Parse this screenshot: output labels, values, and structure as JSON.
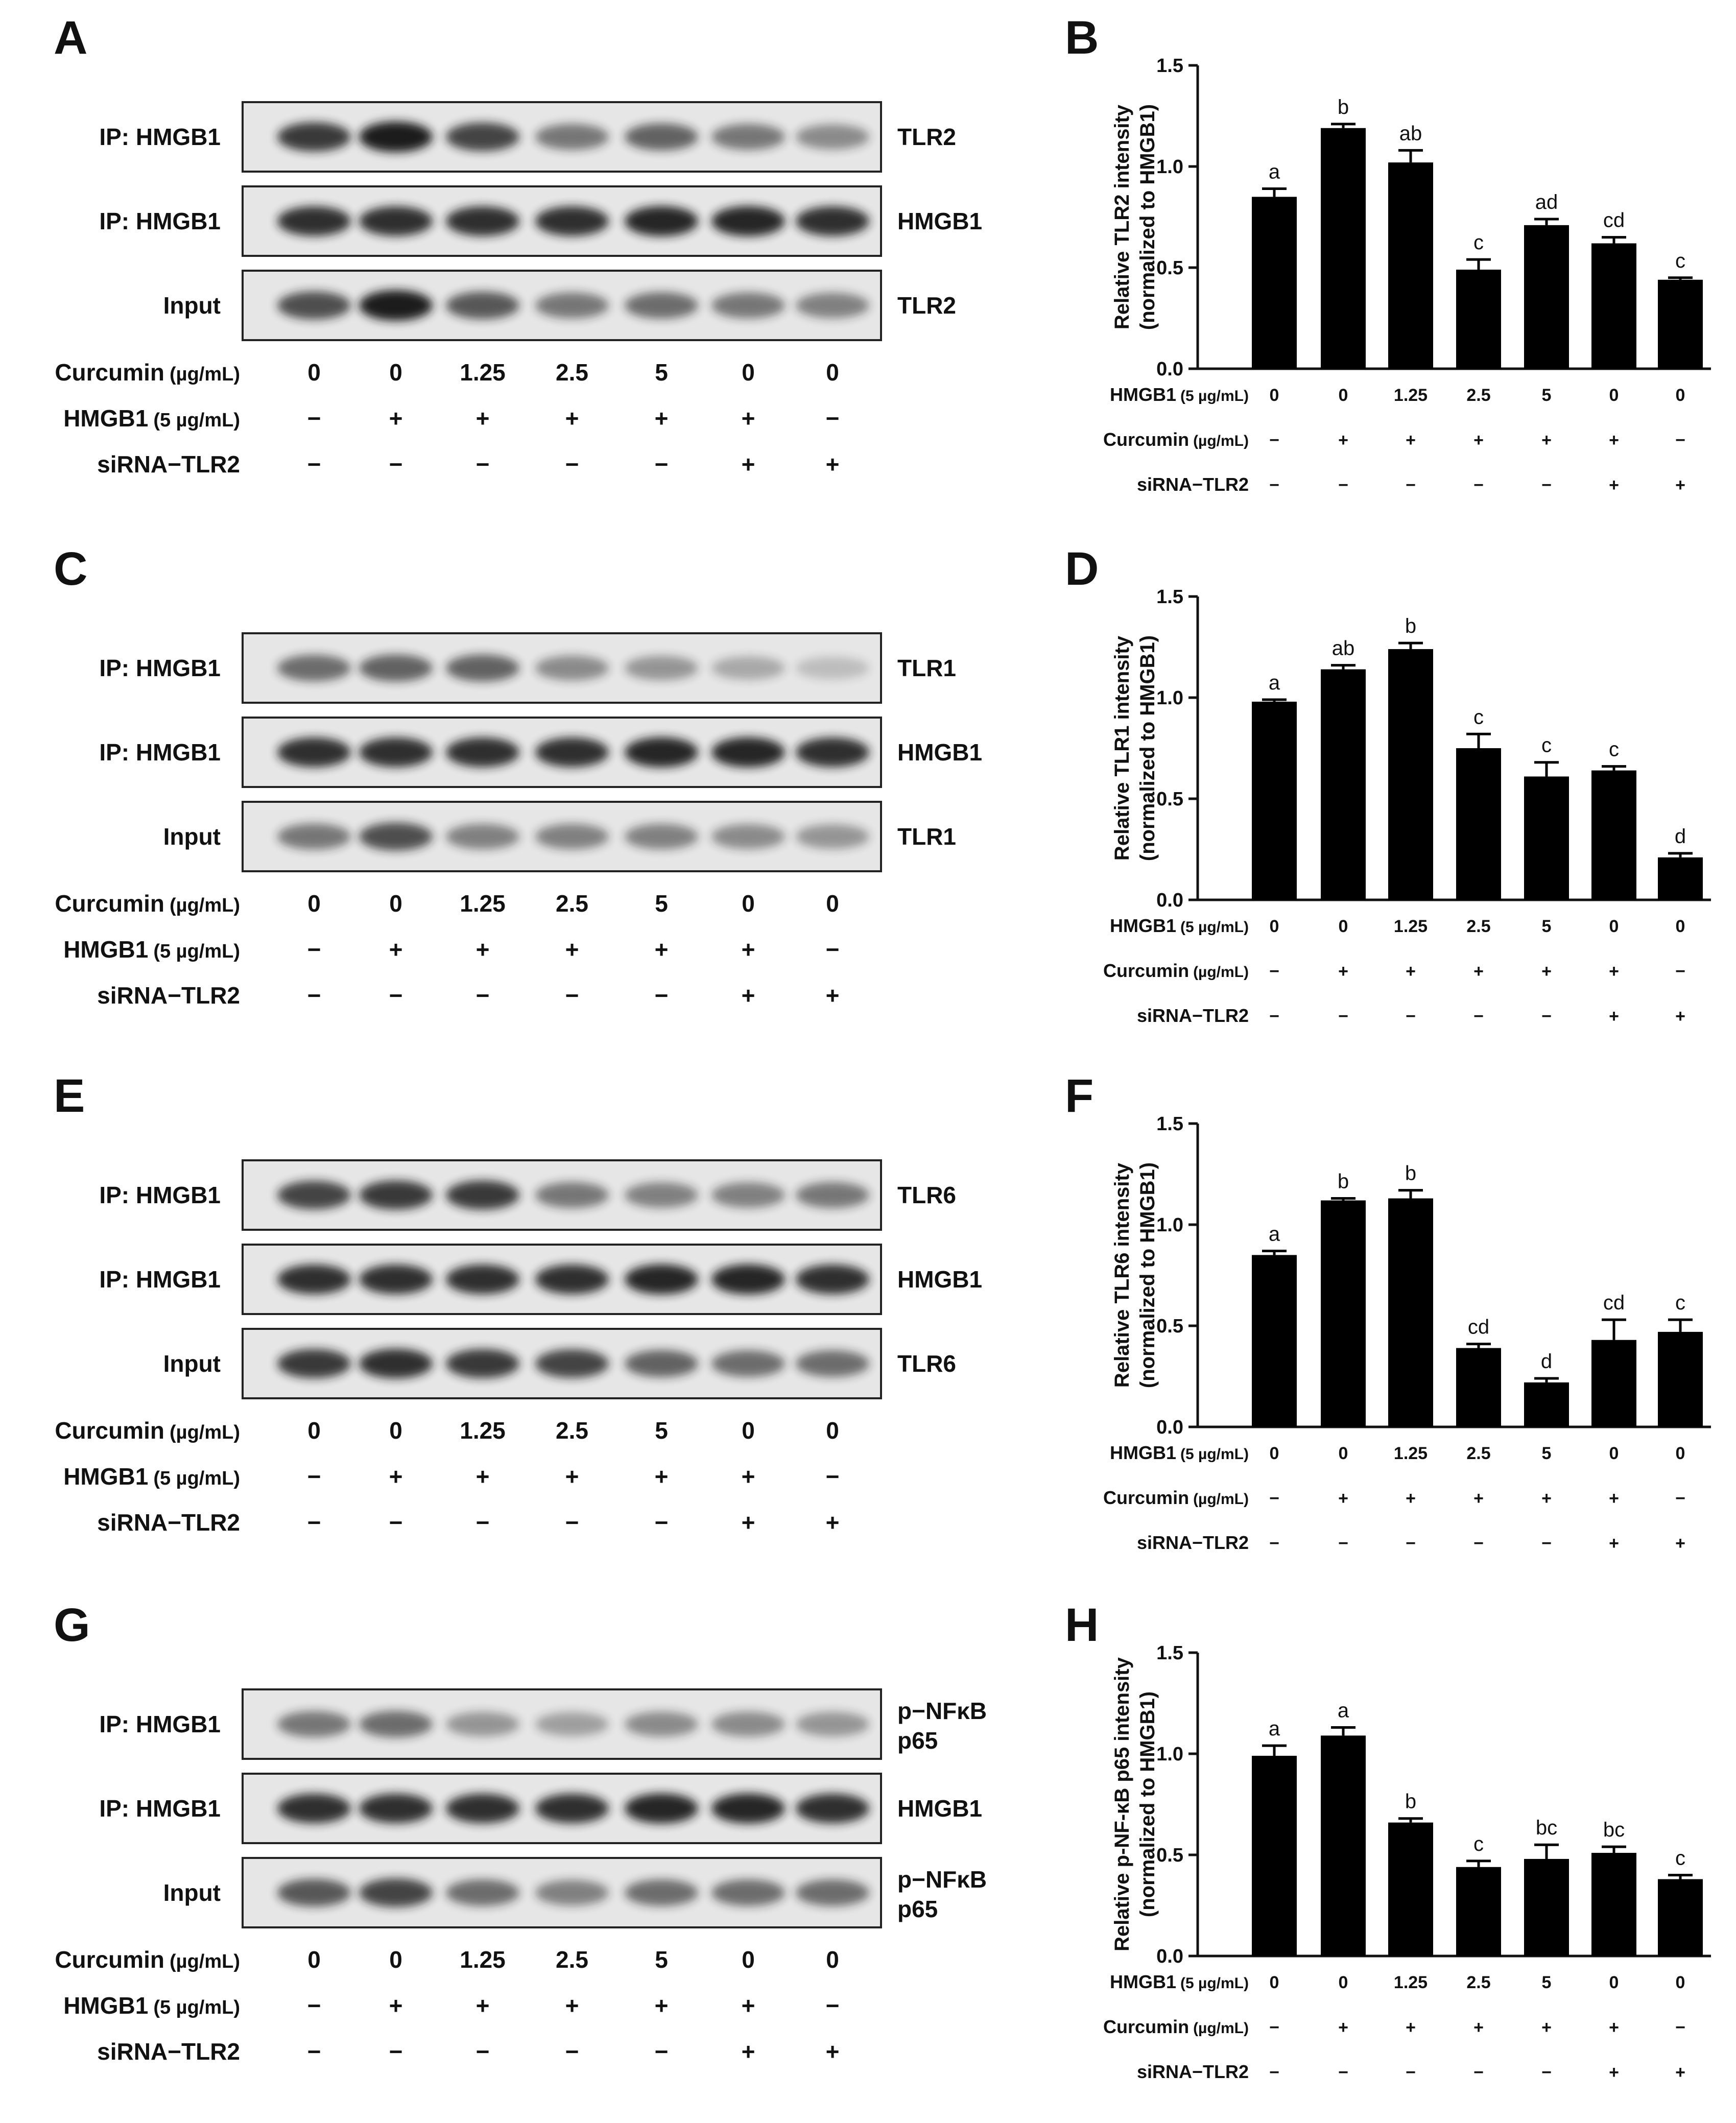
{
  "panels": [
    {
      "blot_letter": "A",
      "chart_letter": "B",
      "blot_rows": [
        {
          "left": "IP: HMGB1",
          "right": [
            "TLR2"
          ],
          "intensities": [
            0.85,
            1.0,
            0.8,
            0.55,
            0.65,
            0.55,
            0.45
          ]
        },
        {
          "left": "IP: HMGB1",
          "right": [
            "HMGB1"
          ],
          "intensities": [
            0.9,
            0.9,
            0.9,
            0.9,
            0.95,
            0.95,
            0.9
          ]
        },
        {
          "left": "Input",
          "right": [
            "TLR2"
          ],
          "intensities": [
            0.75,
            1.0,
            0.7,
            0.55,
            0.6,
            0.55,
            0.5
          ]
        }
      ]
    },
    {
      "blot_letter": "C",
      "chart_letter": "D",
      "blot_rows": [
        {
          "left": "IP: HMGB1",
          "right": [
            "TLR1"
          ],
          "intensities": [
            0.6,
            0.65,
            0.65,
            0.45,
            0.4,
            0.3,
            0.2
          ]
        },
        {
          "left": "IP: HMGB1",
          "right": [
            "HMGB1"
          ],
          "intensities": [
            0.9,
            0.9,
            0.9,
            0.9,
            0.95,
            0.95,
            0.9
          ]
        },
        {
          "left": "Input",
          "right": [
            "TLR1"
          ],
          "intensities": [
            0.55,
            0.75,
            0.5,
            0.5,
            0.5,
            0.45,
            0.4
          ]
        }
      ]
    },
    {
      "blot_letter": "E",
      "chart_letter": "F",
      "blot_rows": [
        {
          "left": "IP: HMGB1",
          "right": [
            "TLR6"
          ],
          "intensities": [
            0.8,
            0.85,
            0.85,
            0.55,
            0.5,
            0.5,
            0.55
          ]
        },
        {
          "left": "IP: HMGB1",
          "right": [
            "HMGB1"
          ],
          "intensities": [
            0.9,
            0.9,
            0.9,
            0.9,
            0.95,
            0.95,
            0.9
          ]
        },
        {
          "left": "Input",
          "right": [
            "TLR6"
          ],
          "intensities": [
            0.85,
            0.9,
            0.85,
            0.8,
            0.65,
            0.6,
            0.6
          ]
        }
      ]
    },
    {
      "blot_letter": "G",
      "chart_letter": "H",
      "blot_rows": [
        {
          "left": "IP: HMGB1",
          "right": [
            "p−NFκB",
            "p65"
          ],
          "intensities": [
            0.55,
            0.6,
            0.4,
            0.35,
            0.45,
            0.45,
            0.4
          ]
        },
        {
          "left": "IP: HMGB1",
          "right": [
            "HMGB1"
          ],
          "intensities": [
            0.9,
            0.9,
            0.9,
            0.9,
            0.95,
            0.95,
            0.9
          ]
        },
        {
          "left": "Input",
          "right": [
            "p−NFκB",
            "p65"
          ],
          "intensities": [
            0.7,
            0.8,
            0.6,
            0.5,
            0.6,
            0.6,
            0.6
          ]
        }
      ]
    }
  ],
  "blot_conditions": [
    {
      "name": "Curcumin",
      "unit": "(µg/mL)",
      "values": [
        "0",
        "0",
        "1.25",
        "2.5",
        "5",
        "0",
        "0"
      ]
    },
    {
      "name": "HMGB1",
      "unit": "(5 µg/mL)",
      "values": [
        "−",
        "+",
        "+",
        "+",
        "+",
        "+",
        "−"
      ]
    },
    {
      "name": "siRNA−TLR2",
      "unit": "",
      "values": [
        "−",
        "−",
        "−",
        "−",
        "−",
        "+",
        "+"
      ]
    }
  ],
  "chart_conditions": [
    {
      "name": "HMGB1",
      "unit": "(5 µg/mL)",
      "values": [
        "0",
        "0",
        "1.25",
        "2.5",
        "5",
        "0",
        "0"
      ]
    },
    {
      "name": "Curcumin",
      "unit": "(µg/mL)",
      "values": [
        "−",
        "+",
        "+",
        "+",
        "+",
        "+",
        "−"
      ]
    },
    {
      "name": "siRNA−TLR2",
      "unit": "",
      "values": [
        "−",
        "−",
        "−",
        "−",
        "−",
        "+",
        "+"
      ]
    }
  ],
  "colors": {
    "bar": "#000000",
    "band": "#1a1a1a",
    "blot_background": "#e6e6e6"
  },
  "chart_data": [
    {
      "type": "bar",
      "ylabel": [
        "Relative TLR2 intensity",
        "(normalized to HMGB1)"
      ],
      "ylim": [
        0,
        1.5
      ],
      "yticks": [
        "0.0",
        "0.5",
        "1.0",
        "1.5"
      ],
      "values": [
        0.85,
        1.19,
        1.02,
        0.49,
        0.71,
        0.62,
        0.44
      ],
      "errors": [
        0.04,
        0.02,
        0.06,
        0.05,
        0.03,
        0.03,
        0.01
      ],
      "significance": [
        "a",
        "b",
        "ab",
        "c",
        "ad",
        "cd",
        "c"
      ]
    },
    {
      "type": "bar",
      "ylabel": [
        "Relative TLR1 intensity",
        "(normalized to HMGB1)"
      ],
      "ylim": [
        0,
        1.5
      ],
      "yticks": [
        "0.0",
        "0.5",
        "1.0",
        "1.5"
      ],
      "values": [
        0.98,
        1.14,
        1.24,
        0.75,
        0.61,
        0.64,
        0.21
      ],
      "errors": [
        0.01,
        0.02,
        0.03,
        0.07,
        0.07,
        0.02,
        0.02
      ],
      "significance": [
        "a",
        "ab",
        "b",
        "c",
        "c",
        "c",
        "d"
      ]
    },
    {
      "type": "bar",
      "ylabel": [
        "Relative TLR6 intensity",
        "(normalized to HMGB1)"
      ],
      "ylim": [
        0,
        1.5
      ],
      "yticks": [
        "0.0",
        "0.5",
        "1.0",
        "1.5"
      ],
      "values": [
        0.85,
        1.12,
        1.13,
        0.39,
        0.22,
        0.43,
        0.47
      ],
      "errors": [
        0.02,
        0.01,
        0.04,
        0.02,
        0.02,
        0.1,
        0.06
      ],
      "significance": [
        "a",
        "b",
        "b",
        "cd",
        "d",
        "cd",
        "c"
      ]
    },
    {
      "type": "bar",
      "ylabel": [
        "Relative p-NF-κB p65 intensity",
        "(normalized to HMGB1)"
      ],
      "ylim": [
        0,
        1.5
      ],
      "yticks": [
        "0.0",
        "0.5",
        "1.0",
        "1.5"
      ],
      "values": [
        0.99,
        1.09,
        0.66,
        0.44,
        0.48,
        0.51,
        0.38
      ],
      "errors": [
        0.05,
        0.04,
        0.02,
        0.03,
        0.07,
        0.03,
        0.02
      ],
      "significance": [
        "a",
        "a",
        "b",
        "c",
        "bc",
        "bc",
        "c"
      ]
    }
  ]
}
